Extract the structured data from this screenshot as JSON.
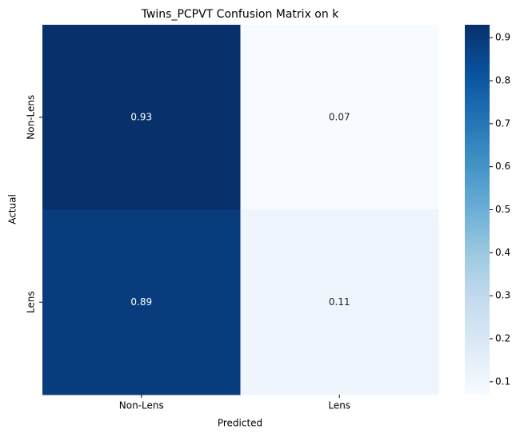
{
  "chart_data": {
    "type": "heatmap",
    "title": "Twins_PCPVT Confusion Matrix on k",
    "xlabel": "Predicted",
    "ylabel": "Actual",
    "x": [
      "Non-Lens",
      "Lens"
    ],
    "y": [
      "Non-Lens",
      "Lens"
    ],
    "values": [
      [
        0.93,
        0.07
      ],
      [
        0.89,
        0.11
      ]
    ],
    "colormap": "Blues",
    "clim": [
      0.07,
      0.93
    ],
    "cticks": [
      0.1,
      0.2,
      0.3,
      0.4,
      0.5,
      0.6,
      0.7,
      0.8,
      0.9
    ]
  }
}
